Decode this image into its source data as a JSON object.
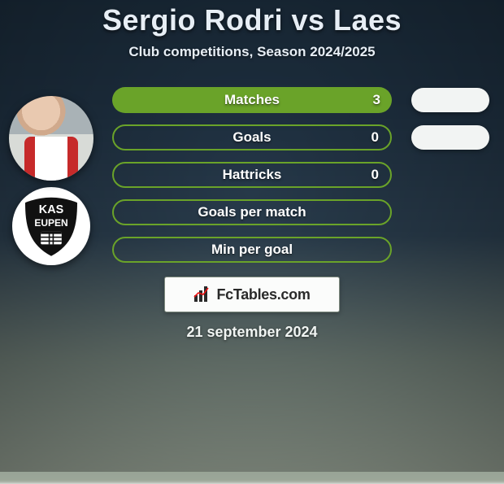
{
  "title": "Sergio Rodri vs Laes",
  "subtitle": "Club competitions, Season 2024/2025",
  "date": "21 september 2024",
  "footer_brand": "FcTables.com",
  "colors": {
    "accent_green": "#6aa329",
    "pill_border_green": "#6aa329",
    "right_pill_bg": "#f2f4f3",
    "text_light": "#e7eef5"
  },
  "avatars": {
    "player_name": "Sergio Rodri",
    "club_name": "KAS Eupen",
    "club_badge_text_top": "KAS",
    "club_badge_text_bottom": "EUPEN"
  },
  "stats": [
    {
      "key": "matches",
      "label": "Matches",
      "value": "3",
      "pill_style": "filled",
      "pill_color": "#6aa329",
      "show_right_pill": true
    },
    {
      "key": "goals",
      "label": "Goals",
      "value": "0",
      "pill_style": "bordered",
      "pill_color": "#6aa329",
      "show_right_pill": true
    },
    {
      "key": "hattricks",
      "label": "Hattricks",
      "value": "0",
      "pill_style": "bordered",
      "pill_color": "#6aa329",
      "show_right_pill": false
    },
    {
      "key": "goals_per_match",
      "label": "Goals per match",
      "value": "",
      "pill_style": "bordered",
      "pill_color": "#6aa329",
      "show_right_pill": false
    },
    {
      "key": "min_per_goal",
      "label": "Min per goal",
      "value": "",
      "pill_style": "bordered",
      "pill_color": "#6aa329",
      "show_right_pill": false
    }
  ]
}
